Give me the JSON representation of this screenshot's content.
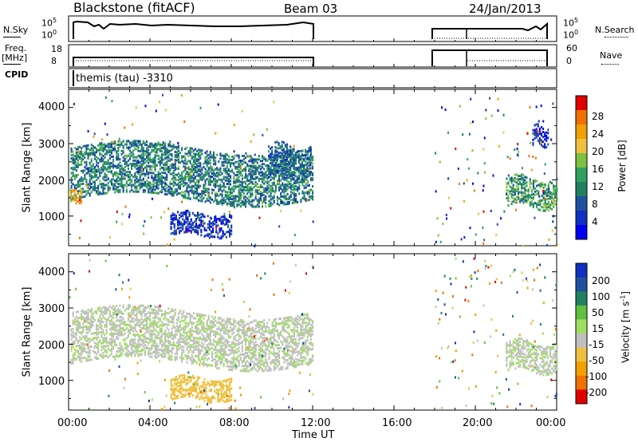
{
  "header": {
    "station": "Blackstone (fitACF)",
    "beam": "Beam 03",
    "date": "24/Jan/2013",
    "cpid": "themis (tau) -3310"
  },
  "top_panels": {
    "nsky_label": "N.Sky",
    "nsky_ticks": [
      "10^5",
      "10^0"
    ],
    "nsearch_label": "N.Search",
    "freq_label_1": "Freq.",
    "freq_label_2": "[MHz]",
    "freq_ticks": [
      "18",
      "8"
    ],
    "nave_ticks": [
      "60",
      "0"
    ],
    "nave_label": "Nave",
    "cpid_label": "CPID",
    "nsearch_ticks": [
      "10^5",
      "10^0"
    ]
  },
  "power_panel": {
    "ylabel": "Slant Range [km]",
    "yticks": [
      "4000",
      "3000",
      "2000",
      "1000"
    ],
    "colorbar_label": "Power [dB]",
    "colorbar_ticks": [
      "28",
      "24",
      "20",
      "16",
      "12",
      "8",
      "4"
    ],
    "colors": [
      "#e00000",
      "#f07000",
      "#f0a000",
      "#f0c040",
      "#80c040",
      "#30a060",
      "#208060",
      "#2050a0",
      "#1030c0",
      "#0000f0"
    ]
  },
  "velocity_panel": {
    "ylabel": "Slant Range [km]",
    "yticks": [
      "4000",
      "3000",
      "2000",
      "1000"
    ],
    "colorbar_label": "Velocity [m s^-1]",
    "colorbar_ticks": [
      "200",
      "100",
      "50",
      "15",
      "-15",
      "-50",
      "-100",
      "-200"
    ],
    "colors": [
      "#1030c0",
      "#2050a0",
      "#208060",
      "#60c040",
      "#a0e060",
      "#c0c0c0",
      "#f0c040",
      "#f0a000",
      "#f07000",
      "#e00000"
    ]
  },
  "xaxis": {
    "ticks": [
      "00:00",
      "04:00",
      "08:00",
      "12:00",
      "16:00",
      "20:00",
      "00:00"
    ],
    "label": "Time UT"
  },
  "chart_data": [
    {
      "type": "heatmap",
      "name": "power",
      "xlabel": "Time UT",
      "ylabel": "Slant Range [km]",
      "xlim": [
        0,
        24
      ],
      "ylim": [
        180,
        4500
      ],
      "colorbar": "Power [dB]",
      "clim": [
        0,
        30
      ],
      "regions": [
        {
          "t0": 0.1,
          "t1": 12.0,
          "r0": 1500,
          "r1": 2900,
          "v": 12
        },
        {
          "t0": 0.0,
          "t1": 0.6,
          "r0": 1400,
          "r1": 1800,
          "v": 22
        },
        {
          "t0": 9.8,
          "t1": 11.9,
          "r0": 2100,
          "r1": 3000,
          "v": 10
        },
        {
          "t0": 5.0,
          "t1": 8.0,
          "r0": 500,
          "r1": 1100,
          "v": 6
        },
        {
          "t0": 21.5,
          "t1": 24.0,
          "r0": 1300,
          "r1": 2100,
          "v": 14
        },
        {
          "t0": 22.8,
          "t1": 23.6,
          "r0": 3000,
          "r1": 3500,
          "v": 6
        }
      ]
    },
    {
      "type": "heatmap",
      "name": "velocity",
      "xlabel": "Time UT",
      "ylabel": "Slant Range [km]",
      "xlim": [
        0,
        24
      ],
      "ylim": [
        180,
        4500
      ],
      "colorbar": "Velocity [m s^-1]",
      "clim": [
        -200,
        200
      ],
      "regions": [
        {
          "t0": 0.1,
          "t1": 12.0,
          "r0": 1500,
          "r1": 2900,
          "v": 0
        },
        {
          "t0": 5.0,
          "t1": 8.0,
          "r0": 500,
          "r1": 1100,
          "v": -60
        },
        {
          "t0": 21.5,
          "t1": 24.0,
          "r0": 1300,
          "r1": 2100,
          "v": 0
        }
      ]
    }
  ]
}
